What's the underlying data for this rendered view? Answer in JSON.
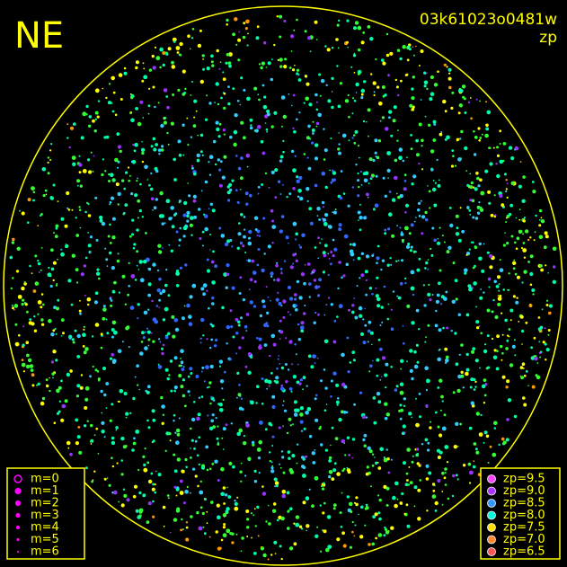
{
  "header": {
    "direction": "NE",
    "image_id": "03k61023o0481w",
    "mode": "zp"
  },
  "magnitude_legend": {
    "items": [
      "m=0",
      "m=1",
      "m=2",
      "m=3",
      "m=4",
      "m=5",
      "m=6"
    ]
  },
  "zp_legend": {
    "items": [
      "zp=9.5",
      "zp=9.0",
      "zp=8.5",
      "zp=8.0",
      "zp=7.5",
      "zp=7.0",
      "zp=6.5"
    ]
  }
}
